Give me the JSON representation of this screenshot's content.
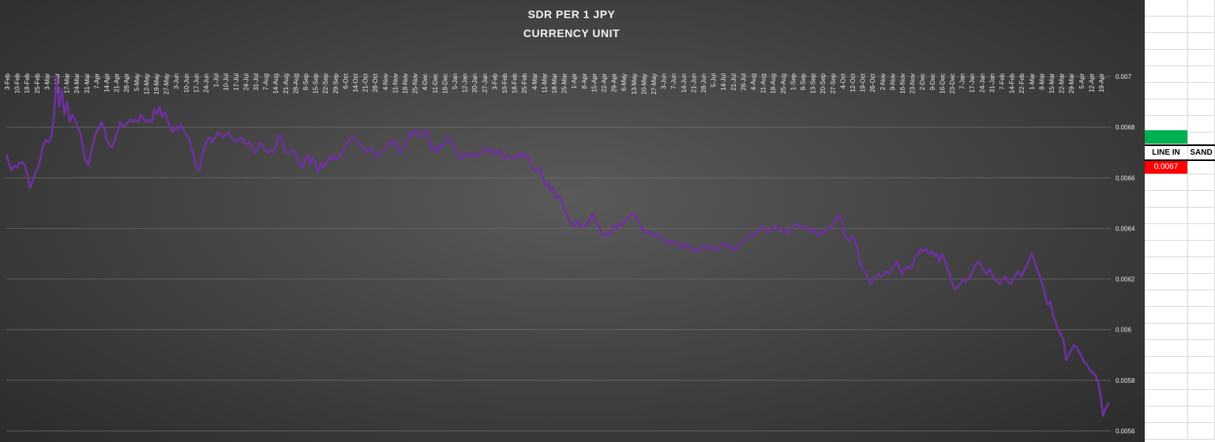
{
  "chart_data": {
    "type": "line",
    "title": "SDR PER 1 JPY",
    "subtitle": "CURRENCY UNIT",
    "xlabel": "",
    "ylabel": "",
    "ylim": [
      0.0056,
      0.007
    ],
    "y_ticks": [
      0.0056,
      0.0058,
      0.006,
      0.0062,
      0.0064,
      0.0066,
      0.0068,
      0.007
    ],
    "y_tick_labels": [
      "0.0056",
      "0.0058",
      "0.006",
      "0.0062",
      "0.0064",
      "0.0066",
      "0.0068",
      "0.007"
    ],
    "y_axis_position": "right",
    "grid": true,
    "legend": "none",
    "line_color": "#7030a0",
    "x_tick_labels": [
      "3-Feb",
      "10-Feb",
      "18-Feb",
      "25-Feb",
      "3-Mar",
      "10-Mar",
      "17-Mar",
      "24-Mar",
      "31-Mar",
      "7-Apr",
      "14-Apr",
      "21-Apr",
      "28-Apr",
      "5-May",
      "12-May",
      "19-May",
      "27-May",
      "3-Jun",
      "10-Jun",
      "17-Jun",
      "24-Jun",
      "1-Jul",
      "10-Jul",
      "17-Jul",
      "24-Jul",
      "31-Jul",
      "7-Aug",
      "14-Aug",
      "21-Aug",
      "28-Aug",
      "8-Sep",
      "15-Sep",
      "22-Sep",
      "29-Sep",
      "6-Oct",
      "14-Oct",
      "21-Oct",
      "28-Oct",
      "4-Nov",
      "11-Nov",
      "18-Nov",
      "25-Nov",
      "4-Dec",
      "11-Dec",
      "18-Dec",
      "5-Jan",
      "12-Jan",
      "20-Jan",
      "27-Jan",
      "3-Feb",
      "10-Feb",
      "18-Feb",
      "25-Feb",
      "4-Mar",
      "11-Mar",
      "18-Mar",
      "25-Mar",
      "1-Apr",
      "8-Apr",
      "15-Apr",
      "22-Apr",
      "29-Apr",
      "6-May",
      "13-May",
      "20-May",
      "27-May",
      "3-Jun",
      "7-Jun",
      "14-Jun",
      "21-Jun",
      "28-Jun",
      "5-Jul",
      "14-Jul",
      "21-Jul",
      "28-Jul",
      "4-Aug",
      "11-Aug",
      "18-Aug",
      "25-Aug",
      "1-Sep",
      "8-Sep",
      "13-Sep",
      "20-Sep",
      "27-Sep",
      "4-Oct",
      "12-Oct",
      "19-Oct",
      "26-Oct",
      "2-Nov",
      "9-Nov",
      "16-Nov",
      "23-Nov",
      "2-Dec",
      "9-Dec",
      "16-Dec",
      "23-Dec",
      "7-Jan",
      "17-Jan",
      "24-Jan",
      "31-Jan",
      "7-Feb",
      "14-Feb",
      "22-Feb",
      "1-Mar",
      "8-Mar",
      "15-Mar",
      "22-Mar",
      "29-Mar",
      "5-Apr",
      "12-Apr",
      "19-Apr"
    ],
    "series": [
      {
        "values": [
          0.00669,
          0.00666,
          0.00663,
          0.00665,
          0.00664,
          0.00666,
          0.00666,
          0.00665,
          0.00661,
          0.00656,
          0.00659,
          0.00662,
          0.00664,
          0.00668,
          0.00673,
          0.00675,
          0.00674,
          0.00676,
          0.00684,
          0.007,
          0.00688,
          0.00695,
          0.00685,
          0.0069,
          0.00682,
          0.00685,
          0.00683,
          0.0068,
          0.00678,
          0.00672,
          0.00667,
          0.00665,
          0.0067,
          0.00674,
          0.00678,
          0.0068,
          0.00682,
          0.0068,
          0.00675,
          0.00673,
          0.00672,
          0.00675,
          0.00678,
          0.00682,
          0.0068,
          0.00681,
          0.00682,
          0.00683,
          0.00682,
          0.00683,
          0.00682,
          0.00685,
          0.00683,
          0.00682,
          0.00683,
          0.00682,
          0.00687,
          0.00685,
          0.00688,
          0.00684,
          0.00686,
          0.00683,
          0.0068,
          0.00678,
          0.0068,
          0.00679,
          0.00681,
          0.00679,
          0.00677,
          0.00676,
          0.00672,
          0.00668,
          0.00664,
          0.00663,
          0.00668,
          0.00672,
          0.00675,
          0.00676,
          0.00674,
          0.00676,
          0.00678,
          0.00677,
          0.00676,
          0.00677,
          0.00678,
          0.00676,
          0.00675,
          0.00674,
          0.00675,
          0.00676,
          0.00674,
          0.00673,
          0.00674,
          0.00672,
          0.0067,
          0.00671,
          0.00674,
          0.00673,
          0.00671,
          0.0067,
          0.00671,
          0.0067,
          0.00673,
          0.00677,
          0.00676,
          0.00672,
          0.0067,
          0.0067,
          0.00671,
          0.00671,
          0.00668,
          0.00666,
          0.00664,
          0.00667,
          0.00669,
          0.00665,
          0.00668,
          0.00666,
          0.00662,
          0.00666,
          0.00664,
          0.00666,
          0.00668,
          0.00667,
          0.00669,
          0.00667,
          0.00668,
          0.0067,
          0.00672,
          0.00674,
          0.00675,
          0.00676,
          0.00675,
          0.00674,
          0.00673,
          0.00672,
          0.0067,
          0.00671,
          0.00672,
          0.0067,
          0.00668,
          0.00669,
          0.0067,
          0.00671,
          0.00673,
          0.00674,
          0.00673,
          0.00675,
          0.00672,
          0.0067,
          0.00672,
          0.00673,
          0.00676,
          0.00678,
          0.00677,
          0.00679,
          0.00677,
          0.00676,
          0.00678,
          0.00679,
          0.00675,
          0.00671,
          0.00672,
          0.0067,
          0.00673,
          0.00672,
          0.00674,
          0.00676,
          0.00675,
          0.00673,
          0.00671,
          0.00669,
          0.00667,
          0.00669,
          0.0067,
          0.00668,
          0.00669,
          0.0067,
          0.00668,
          0.00669,
          0.0067,
          0.00671,
          0.00672,
          0.0067,
          0.00671,
          0.00669,
          0.0067,
          0.00671,
          0.00667,
          0.00668,
          0.00669,
          0.00668,
          0.00667,
          0.00669,
          0.00668,
          0.0067,
          0.00668,
          0.00669,
          0.00667,
          0.00664,
          0.00663,
          0.00662,
          0.00664,
          0.0066,
          0.00657,
          0.00658,
          0.00655,
          0.00656,
          0.00652,
          0.00653,
          0.00651,
          0.00648,
          0.00646,
          0.00643,
          0.00642,
          0.00641,
          0.00643,
          0.00641,
          0.00642,
          0.00641,
          0.00642,
          0.00644,
          0.00646,
          0.00643,
          0.00641,
          0.00639,
          0.00637,
          0.00638,
          0.00637,
          0.00639,
          0.00641,
          0.0064,
          0.00642,
          0.00641,
          0.00643,
          0.00644,
          0.00645,
          0.00646,
          0.00645,
          0.00643,
          0.00641,
          0.00639,
          0.00638,
          0.00639,
          0.00638,
          0.00637,
          0.00638,
          0.00637,
          0.00636,
          0.00635,
          0.00634,
          0.00635,
          0.00634,
          0.00635,
          0.00634,
          0.00633,
          0.00632,
          0.00634,
          0.00633,
          0.00632,
          0.00631,
          0.00632,
          0.00631,
          0.00632,
          0.00633,
          0.00632,
          0.00633,
          0.00632,
          0.00631,
          0.00632,
          0.00633,
          0.00634,
          0.00633,
          0.00634,
          0.00633,
          0.00631,
          0.00632,
          0.00633,
          0.00634,
          0.00635,
          0.00636,
          0.00637,
          0.00638,
          0.00637,
          0.00638,
          0.0064,
          0.00641,
          0.0064,
          0.00638,
          0.00639,
          0.0064,
          0.00641,
          0.0064,
          0.00639,
          0.0064,
          0.00639,
          0.00638,
          0.0064,
          0.00641,
          0.00642,
          0.00641,
          0.0064,
          0.00641,
          0.0064,
          0.00639,
          0.0064,
          0.00638,
          0.00637,
          0.00639,
          0.00638,
          0.00639,
          0.0064,
          0.00641,
          0.00642,
          0.00644,
          0.00645,
          0.00644,
          0.00638,
          0.00636,
          0.00635,
          0.00637,
          0.00636,
          0.00632,
          0.00626,
          0.00624,
          0.00623,
          0.0062,
          0.00618,
          0.0062,
          0.00621,
          0.00622,
          0.00621,
          0.00622,
          0.00623,
          0.00622,
          0.00624,
          0.00625,
          0.00627,
          0.00624,
          0.00622,
          0.00624,
          0.00625,
          0.00624,
          0.00626,
          0.00629,
          0.0063,
          0.00632,
          0.00631,
          0.00632,
          0.0063,
          0.00631,
          0.00629,
          0.0063,
          0.00627,
          0.0063,
          0.00628,
          0.00624,
          0.00622,
          0.00618,
          0.00616,
          0.00617,
          0.00618,
          0.0062,
          0.00619,
          0.0062,
          0.00622,
          0.00624,
          0.00626,
          0.00627,
          0.00625,
          0.00623,
          0.00622,
          0.00624,
          0.00622,
          0.0062,
          0.00619,
          0.00618,
          0.0062,
          0.00621,
          0.00619,
          0.00618,
          0.0062,
          0.00622,
          0.00623,
          0.00621,
          0.00623,
          0.00625,
          0.00628,
          0.0063,
          0.00627,
          0.00624,
          0.00621,
          0.00618,
          0.00614,
          0.0061,
          0.00611,
          0.00606,
          0.00603,
          0.006,
          0.00598,
          0.00596,
          0.00588,
          0.0059,
          0.00592,
          0.00594,
          0.00593,
          0.00591,
          0.00589,
          0.00587,
          0.00586,
          0.00584,
          0.00583,
          0.00582,
          0.0058,
          0.00574,
          0.00566,
          0.00569,
          0.00571
        ]
      }
    ]
  },
  "sheet": {
    "header_a": "LINE IN",
    "header_b": "SAND",
    "value_a": "0.0067",
    "green_color": "#00b050",
    "red_color": "#ff0000"
  }
}
